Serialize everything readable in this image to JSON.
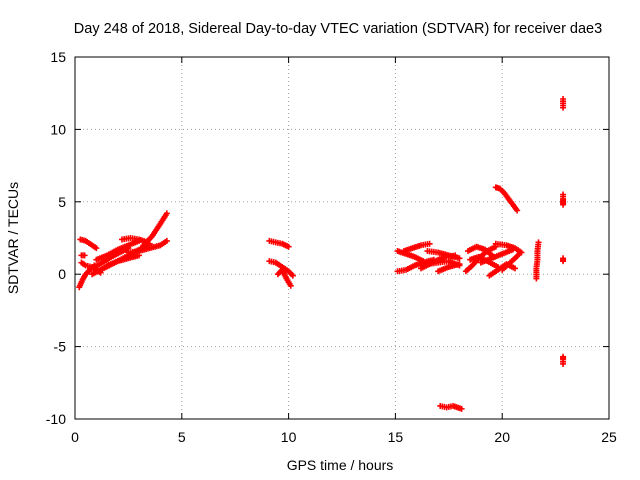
{
  "chart_data": {
    "type": "scatter",
    "title": "Day 248 of 2018, Sidereal Day-to-day VTEC variation (SDTVAR) for receiver dae3",
    "xlabel": "GPS time / hours",
    "ylabel": "SDTVAR / TECUs",
    "xlim": [
      0,
      25
    ],
    "ylim": [
      -10,
      15
    ],
    "xticks": [
      0,
      5,
      10,
      15,
      20,
      25
    ],
    "yticks": [
      -10,
      -5,
      0,
      5,
      10,
      15
    ],
    "xtick_labels": [
      "0",
      "5",
      "10",
      "15",
      "20",
      "25"
    ],
    "ytick_labels": [
      "-10",
      "-5",
      "0",
      "5",
      "10",
      "15"
    ],
    "grid": true,
    "marker": "+",
    "color": "#ff0000",
    "segments": [
      {
        "x": [
          0.25,
          0.5,
          0.8,
          1.0
        ],
        "y": [
          2.4,
          2.3,
          2.0,
          1.8
        ]
      },
      {
        "x": [
          0.2,
          0.35,
          0.5,
          0.7,
          0.9
        ],
        "y": [
          -0.9,
          -0.4,
          0.0,
          0.3,
          0.6
        ]
      },
      {
        "x": [
          0.3,
          0.5,
          0.8,
          1.0,
          1.2
        ],
        "y": [
          0.8,
          0.6,
          0.5,
          0.3,
          0.1
        ]
      },
      {
        "x": [
          0.3,
          0.45
        ],
        "y": [
          1.3,
          1.3
        ]
      },
      {
        "x": [
          0.8,
          1.2,
          1.6,
          2.0,
          2.5,
          3.0
        ],
        "y": [
          0.0,
          0.3,
          0.6,
          0.9,
          1.1,
          1.3
        ]
      },
      {
        "x": [
          0.9,
          1.3,
          1.7,
          2.1,
          2.5
        ],
        "y": [
          0.5,
          0.8,
          1.2,
          1.5,
          1.8
        ]
      },
      {
        "x": [
          1.0,
          1.5,
          2.0,
          2.5,
          3.0
        ],
        "y": [
          1.0,
          1.3,
          1.7,
          2.0,
          2.3
        ]
      },
      {
        "x": [
          1.5,
          2.0,
          2.5,
          3.0,
          3.5
        ],
        "y": [
          0.6,
          0.9,
          1.3,
          1.7,
          2.1
        ]
      },
      {
        "x": [
          2.2,
          2.6,
          3.0,
          3.4
        ],
        "y": [
          2.4,
          2.5,
          2.4,
          2.2
        ]
      },
      {
        "x": [
          2.5,
          3.0,
          3.5,
          4.0,
          4.3
        ],
        "y": [
          1.5,
          1.6,
          1.8,
          2.0,
          2.3
        ]
      },
      {
        "x": [
          3.2,
          3.6,
          4.0,
          4.3
        ],
        "y": [
          2.0,
          2.6,
          3.5,
          4.2
        ]
      },
      {
        "x": [
          9.1,
          9.4,
          9.7,
          10.0
        ],
        "y": [
          2.3,
          2.2,
          2.1,
          1.9
        ]
      },
      {
        "x": [
          9.1,
          9.4,
          9.7,
          10.0,
          10.2
        ],
        "y": [
          0.9,
          0.8,
          0.5,
          0.2,
          -0.1
        ]
      },
      {
        "x": [
          9.5,
          9.7,
          9.9,
          10.1
        ],
        "y": [
          0.0,
          0.3,
          -0.3,
          -0.8
        ]
      },
      {
        "x": [
          15.1,
          15.5,
          15.9,
          16.3
        ],
        "y": [
          1.6,
          1.4,
          1.2,
          0.9
        ]
      },
      {
        "x": [
          15.1,
          15.5,
          15.9,
          16.3,
          16.8
        ],
        "y": [
          0.2,
          0.3,
          0.6,
          0.8,
          1.0
        ]
      },
      {
        "x": [
          15.4,
          15.8,
          16.2,
          16.6
        ],
        "y": [
          1.6,
          1.8,
          2.0,
          2.1
        ]
      },
      {
        "x": [
          16.2,
          16.6,
          17.0,
          17.4,
          17.8
        ],
        "y": [
          0.4,
          0.7,
          1.0,
          1.2,
          1.3
        ]
      },
      {
        "x": [
          16.5,
          17.0,
          17.5,
          18.0
        ],
        "y": [
          1.6,
          1.5,
          1.3,
          1.1
        ]
      },
      {
        "x": [
          16.5,
          17.0,
          17.5,
          18.0
        ],
        "y": [
          0.7,
          0.8,
          0.9,
          0.6
        ]
      },
      {
        "x": [
          17.0,
          17.5,
          18.0
        ],
        "y": [
          0.2,
          0.5,
          0.7
        ]
      },
      {
        "x": [
          17.1,
          17.4,
          17.7,
          18.1
        ],
        "y": [
          -9.1,
          -9.2,
          -9.1,
          -9.3
        ]
      },
      {
        "x": [
          18.3,
          18.6,
          18.9,
          19.3,
          19.7
        ],
        "y": [
          0.2,
          0.6,
          1.1,
          1.6,
          1.9
        ]
      },
      {
        "x": [
          18.4,
          18.8,
          19.2,
          19.6
        ],
        "y": [
          1.6,
          1.9,
          1.7,
          1.2
        ]
      },
      {
        "x": [
          18.5,
          18.9,
          19.3,
          19.8
        ],
        "y": [
          1.0,
          1.2,
          0.9,
          0.5
        ]
      },
      {
        "x": [
          19.0,
          19.5,
          20.0,
          20.5
        ],
        "y": [
          0.8,
          1.1,
          1.4,
          1.7
        ]
      },
      {
        "x": [
          19.7,
          20.2,
          20.6,
          20.9
        ],
        "y": [
          2.1,
          2.0,
          1.8,
          1.5
        ]
      },
      {
        "x": [
          20.0,
          20.3,
          20.6,
          20.8
        ],
        "y": [
          0.3,
          0.7,
          1.1,
          1.4
        ]
      },
      {
        "x": [
          19.4,
          19.8,
          20.2,
          20.6
        ],
        "y": [
          -0.1,
          0.3,
          0.7,
          0.4
        ]
      },
      {
        "x": [
          19.7,
          19.9,
          20.1,
          20.3,
          20.5,
          20.7
        ],
        "y": [
          6.0,
          5.9,
          5.6,
          5.2,
          4.8,
          4.4
        ]
      },
      {
        "x": [
          21.6,
          21.6,
          21.65,
          21.65,
          21.7
        ],
        "y": [
          -0.3,
          0.4,
          1.0,
          1.6,
          2.2
        ]
      },
      {
        "x": [
          22.85,
          22.85,
          22.85
        ],
        "y": [
          12.1,
          11.8,
          11.5
        ]
      },
      {
        "x": [
          22.85,
          22.85,
          22.85,
          22.85
        ],
        "y": [
          5.5,
          5.2,
          5.0,
          4.8
        ]
      },
      {
        "x": [
          22.85,
          22.85
        ],
        "y": [
          1.1,
          0.9
        ]
      },
      {
        "x": [
          22.85,
          22.85,
          22.85
        ],
        "y": [
          -5.7,
          -5.9,
          -6.2
        ]
      }
    ]
  }
}
